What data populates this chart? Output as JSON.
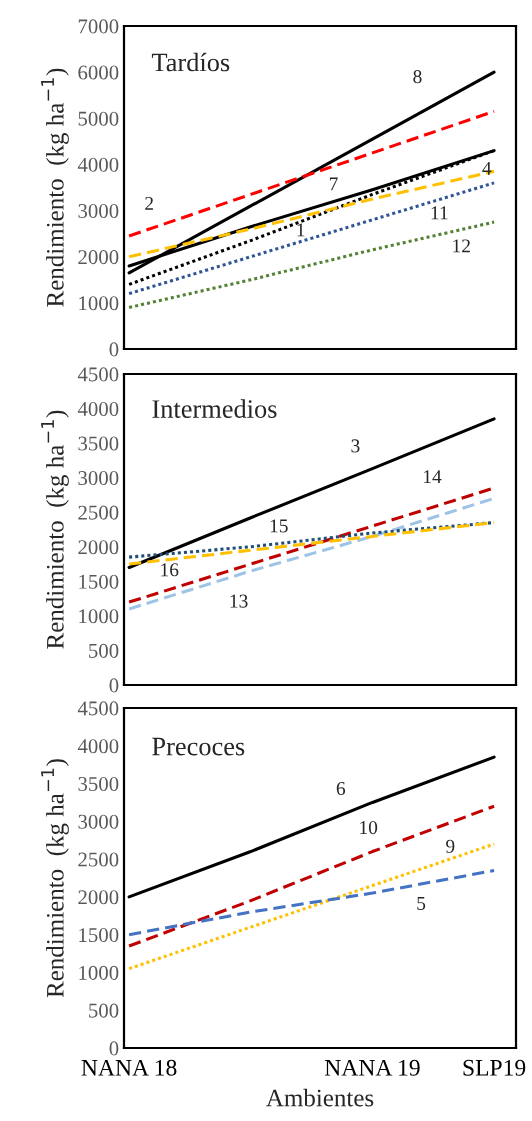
{
  "chart_data": [
    {
      "type": "line",
      "title": "Tardíos",
      "ylabel": "Rendimiento  (kg ha$^{−1}$)",
      "ylim": [
        0,
        7000
      ],
      "yticks": [
        0,
        1000,
        2000,
        3000,
        4000,
        5000,
        6000,
        7000
      ],
      "categories": [
        null,
        null,
        null,
        null
      ],
      "grid": false,
      "legend": false,
      "series": [
        {
          "name": "8",
          "color": "#000000",
          "line_style": "solid",
          "values": [
            1650,
            3100,
            4550,
            6000
          ]
        },
        {
          "name": "2",
          "color": "#ff0000",
          "line_style": "dashed",
          "values": [
            2450,
            3350,
            4250,
            5150
          ]
        },
        {
          "name": "7",
          "color": "#000000",
          "line_style": "solid",
          "values": [
            1800,
            2650,
            3450,
            4300
          ]
        },
        {
          "name": "1",
          "color": "#000000",
          "line_style": "dotted",
          "values": [
            1400,
            2350,
            3350,
            4300
          ]
        },
        {
          "name": "4",
          "color": "#ffc000",
          "line_style": "dashed",
          "values": [
            2000,
            2600,
            3250,
            3850
          ]
        },
        {
          "name": "11",
          "color": "#2f5597",
          "line_style": "dotted",
          "values": [
            1200,
            2000,
            2800,
            3600
          ]
        },
        {
          "name": "12",
          "color": "#548235",
          "line_style": "dotted",
          "values": [
            900,
            1500,
            2150,
            2750
          ]
        }
      ]
    },
    {
      "type": "line",
      "title": "Intermedios",
      "ylabel": "Rendimiento  (kg ha$^{−1}$)",
      "ylim": [
        0,
        4500
      ],
      "yticks": [
        0,
        500,
        1000,
        1500,
        2000,
        2500,
        3000,
        3500,
        4000,
        4500
      ],
      "categories": [
        null,
        null,
        null,
        null
      ],
      "grid": false,
      "legend": false,
      "series": [
        {
          "name": "3",
          "color": "#000000",
          "line_style": "solid",
          "values": [
            1700,
            2420,
            3130,
            3850
          ]
        },
        {
          "name": "14",
          "color": "#c00000",
          "line_style": "dashed",
          "values": [
            1200,
            1750,
            2300,
            2850
          ]
        },
        {
          "name": "13",
          "color": "#9dc3e6",
          "line_style": "dashed",
          "values": [
            1100,
            1650,
            2150,
            2700
          ]
        },
        {
          "name": "15",
          "color": "#1f4e79",
          "line_style": "dotted",
          "values": [
            1850,
            2000,
            2200,
            2350
          ]
        },
        {
          "name": "16",
          "color": "#ffc000",
          "line_style": "dashed",
          "values": [
            1750,
            1950,
            2150,
            2350
          ]
        }
      ]
    },
    {
      "type": "line",
      "title": "Precoces",
      "ylabel": "Rendimiento  (kg ha$^{−1}$)",
      "xlabel": "Ambientes",
      "ylim": [
        0,
        4500
      ],
      "yticks": [
        0,
        500,
        1000,
        1500,
        2000,
        2500,
        3000,
        3500,
        4000,
        4500
      ],
      "categories": [
        "NANA 18",
        null,
        "NANA 19",
        "SLP19"
      ],
      "grid": false,
      "legend": false,
      "series": [
        {
          "name": "6",
          "color": "#000000",
          "line_style": "solid",
          "values": [
            2000,
            2600,
            3250,
            3850
          ]
        },
        {
          "name": "10",
          "color": "#c00000",
          "line_style": "dashed",
          "values": [
            1350,
            1950,
            2600,
            3200
          ]
        },
        {
          "name": "9",
          "color": "#ffc000",
          "line_style": "dotted",
          "values": [
            1050,
            1600,
            2150,
            2700
          ]
        },
        {
          "name": "5",
          "color": "#4472c4",
          "line_style": "dashed",
          "values": [
            1500,
            1800,
            2050,
            2350
          ]
        }
      ]
    }
  ]
}
